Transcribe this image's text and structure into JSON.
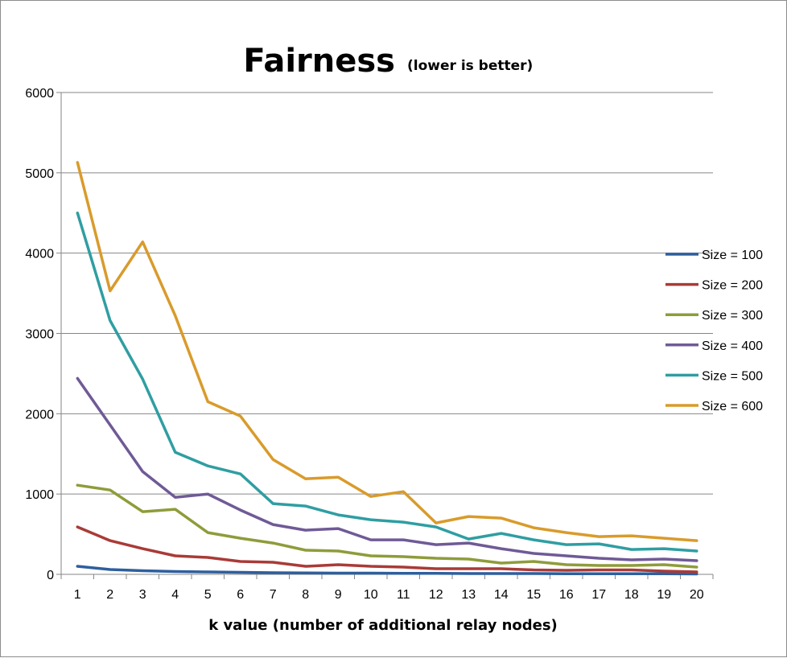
{
  "chart_data": {
    "type": "line",
    "title": "Fairness",
    "subtitle": "(lower is better)",
    "xlabel": "k value (number of additional relay nodes)",
    "ylabel": "",
    "x": [
      1,
      2,
      3,
      4,
      5,
      6,
      7,
      8,
      9,
      10,
      11,
      12,
      13,
      14,
      15,
      16,
      17,
      18,
      19,
      20
    ],
    "ylim": [
      0,
      6000
    ],
    "yticks": [
      0,
      1000,
      2000,
      3000,
      4000,
      5000,
      6000
    ],
    "grid": "horizontal",
    "legend_position": "right",
    "series": [
      {
        "name": "Size = 100",
        "color": "#2e5f9e",
        "values": [
          100,
          60,
          45,
          35,
          30,
          25,
          20,
          18,
          15,
          15,
          12,
          12,
          10,
          10,
          10,
          8,
          8,
          8,
          8,
          5
        ]
      },
      {
        "name": "Size = 200",
        "color": "#a93b37",
        "values": [
          590,
          420,
          320,
          230,
          210,
          160,
          150,
          100,
          120,
          100,
          90,
          70,
          70,
          70,
          55,
          50,
          55,
          55,
          40,
          30
        ]
      },
      {
        "name": "Size = 300",
        "color": "#8f9c3a",
        "values": [
          1110,
          1050,
          780,
          810,
          520,
          450,
          390,
          300,
          290,
          230,
          220,
          200,
          190,
          140,
          160,
          120,
          110,
          110,
          120,
          90
        ]
      },
      {
        "name": "Size = 400",
        "color": "#6f5a96",
        "values": [
          2440,
          1860,
          1280,
          960,
          1000,
          800,
          620,
          550,
          570,
          430,
          430,
          370,
          390,
          320,
          260,
          230,
          200,
          180,
          190,
          170
        ]
      },
      {
        "name": "Size = 500",
        "color": "#2f9ea2",
        "values": [
          4500,
          3160,
          2430,
          1520,
          1350,
          1250,
          880,
          850,
          740,
          680,
          650,
          590,
          440,
          510,
          430,
          370,
          380,
          310,
          320,
          290
        ]
      },
      {
        "name": "Size = 600",
        "color": "#d99b2b",
        "values": [
          5130,
          3530,
          4140,
          3220,
          2150,
          1970,
          1430,
          1190,
          1210,
          970,
          1030,
          640,
          720,
          700,
          580,
          520,
          470,
          480,
          450,
          420
        ]
      }
    ]
  }
}
